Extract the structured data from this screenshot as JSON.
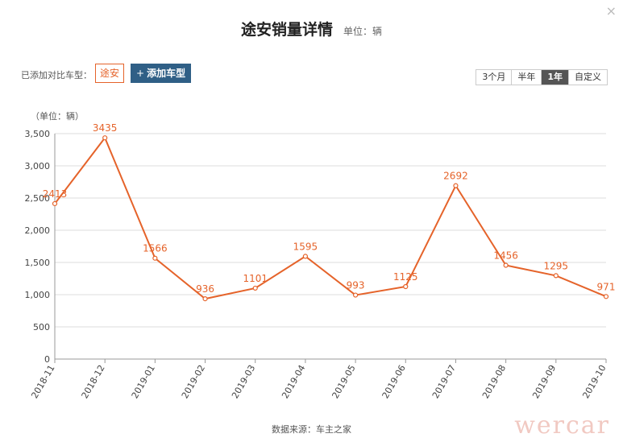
{
  "header": {
    "title": "途安销量详情",
    "subtitle": "单位：辆"
  },
  "compare": {
    "label": "已添加对比车型：",
    "model": "途安",
    "add_label": "添加车型"
  },
  "ranges": [
    "3个月",
    "半年",
    "1年",
    "自定义"
  ],
  "active_range": "1年",
  "source": "数据来源：车主之家",
  "watermark": "wercar",
  "chart_data": {
    "type": "line",
    "unit_label": "（单位：辆）",
    "categories": [
      "2018-11",
      "2018-12",
      "2019-01",
      "2019-02",
      "2019-03",
      "2019-04",
      "2019-05",
      "2019-06",
      "2019-07",
      "2019-08",
      "2019-09",
      "2019-10"
    ],
    "values": [
      2413,
      3435,
      1566,
      936,
      1101,
      1595,
      993,
      1125,
      2692,
      1456,
      1295,
      971
    ],
    "ylim": [
      0,
      3500
    ],
    "yticks": [
      0,
      500,
      1000,
      1500,
      2000,
      2500,
      3000,
      3500
    ],
    "ytick_labels": [
      "0",
      "500",
      "1,000",
      "1,500",
      "2,000",
      "2,500",
      "3,000",
      "3,500"
    ],
    "grid": true,
    "color": "#e5632a"
  }
}
